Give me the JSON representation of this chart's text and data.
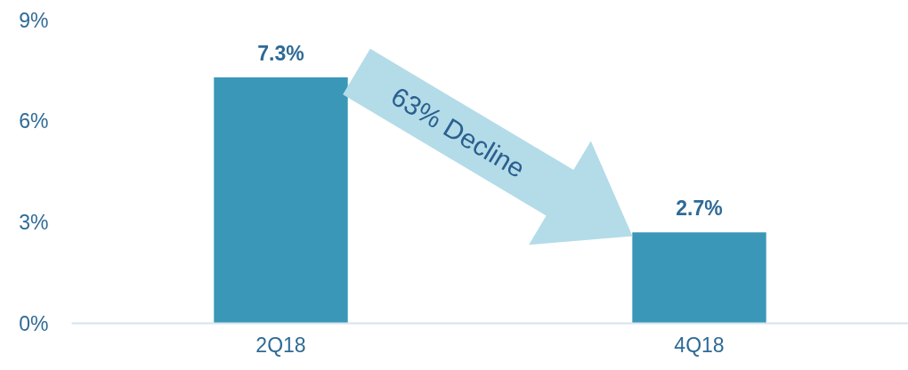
{
  "chart_data": {
    "type": "bar",
    "categories": [
      "2Q18",
      "4Q18"
    ],
    "values": [
      7.3,
      2.7
    ],
    "color": "#3a97b8",
    "value_labels": [
      "7.3%",
      "2.7%"
    ],
    "ylim": [
      0,
      9
    ],
    "yticks": [
      {
        "value": 0,
        "label": "0%"
      },
      {
        "value": 3,
        "label": "3%"
      },
      {
        "value": 6,
        "label": "6%"
      },
      {
        "value": 9,
        "label": "9%"
      }
    ],
    "grid": false,
    "annotations": [
      "63% Decline"
    ]
  }
}
